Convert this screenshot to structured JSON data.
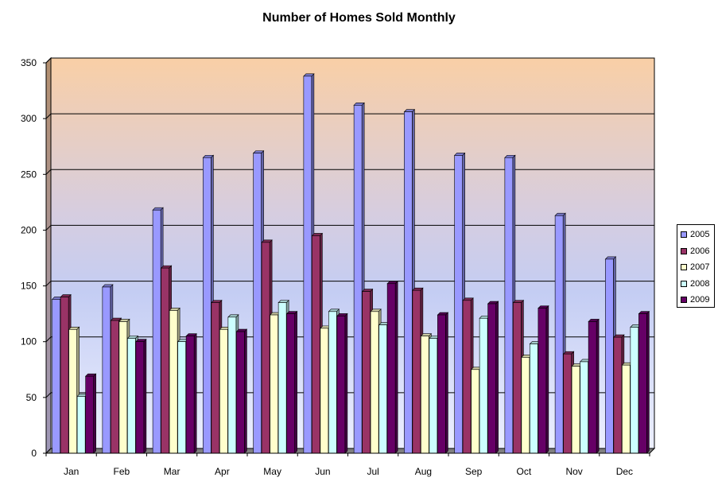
{
  "chart_data": {
    "type": "bar",
    "title": "Number of Homes Sold Monthly",
    "xlabel": "",
    "ylabel": "",
    "ylim": [
      0,
      350
    ],
    "yticks": [
      0,
      50,
      100,
      150,
      200,
      250,
      300,
      350
    ],
    "grid": true,
    "legend_position": "right",
    "categories": [
      "Jan",
      "Feb",
      "Mar",
      "Apr",
      "May",
      "Jun",
      "Jul",
      "Aug",
      "Sep",
      "Oct",
      "Nov",
      "Dec"
    ],
    "series": [
      {
        "name": "2005",
        "color": "#9999ff",
        "values": [
          138,
          149,
          218,
          265,
          269,
          338,
          312,
          306,
          267,
          265,
          213,
          174
        ]
      },
      {
        "name": "2006",
        "color": "#993366",
        "values": [
          140,
          119,
          166,
          135,
          189,
          195,
          145,
          146,
          137,
          135,
          89,
          104
        ]
      },
      {
        "name": "2007",
        "color": "#ffffcc",
        "values": [
          111,
          118,
          128,
          111,
          124,
          112,
          127,
          105,
          75,
          86,
          78,
          79
        ]
      },
      {
        "name": "2008",
        "color": "#ccffff",
        "values": [
          51,
          103,
          100,
          122,
          135,
          127,
          115,
          103,
          121,
          98,
          82,
          113
        ]
      },
      {
        "name": "2009",
        "color": "#660066",
        "values": [
          69,
          100,
          105,
          109,
          125,
          123,
          152,
          124,
          134,
          130,
          118,
          125
        ]
      }
    ]
  }
}
